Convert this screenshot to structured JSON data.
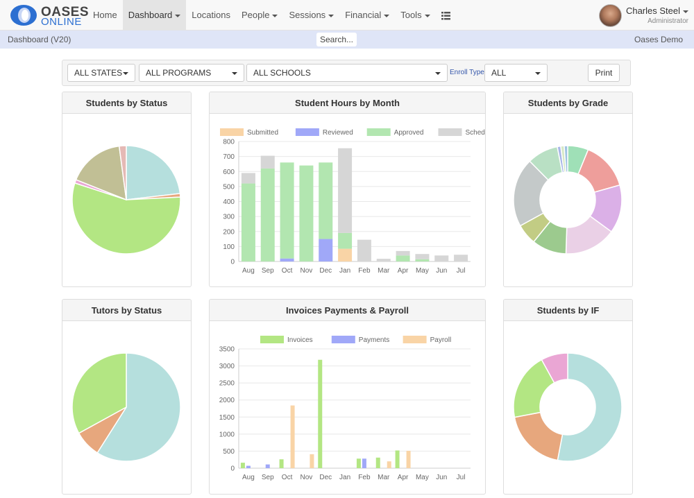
{
  "brand": {
    "line1": "OASES",
    "line2": "ONLINE",
    "accent": "#2c6fd1"
  },
  "nav": [
    {
      "label": "Home",
      "dropdown": false,
      "active": false
    },
    {
      "label": "Dashboard",
      "dropdown": true,
      "active": true
    },
    {
      "label": "Locations",
      "dropdown": false,
      "active": false
    },
    {
      "label": "People",
      "dropdown": true,
      "active": false
    },
    {
      "label": "Sessions",
      "dropdown": true,
      "active": false
    },
    {
      "label": "Financial",
      "dropdown": true,
      "active": false
    },
    {
      "label": "Tools",
      "dropdown": true,
      "active": false
    }
  ],
  "grid_icon": "list-grid-icon",
  "user": {
    "name": "Charles Steel",
    "role": "Administrator"
  },
  "subbar": {
    "left": "Dashboard (V20)",
    "search": "Search...",
    "right": "Oases Demo"
  },
  "filters": {
    "states": "ALL STATES",
    "programs": "ALL PROGRAMS",
    "schools": "ALL SCHOOLS",
    "enroll_label": "Enroll Type",
    "enroll_value": "ALL",
    "print": "Print"
  },
  "panels": {
    "students_status": "Students by Status",
    "hours": "Student Hours by Month",
    "grade": "Students by Grade",
    "tutors": "Tutors by Status",
    "invoices": "Invoices Payments & Payroll",
    "if": "Students by IF"
  },
  "chart_data": [
    {
      "type": "pie",
      "values": [
        22,
        1,
        53,
        1,
        16,
        2
      ],
      "colors": [
        "#b5dfdd",
        "#e7a77d",
        "#b3e683",
        "#eaa6d4",
        "#c1bf95",
        "#e5b9b5"
      ]
    },
    {
      "type": "bar",
      "stacked": true,
      "categories": [
        "Aug",
        "Sep",
        "Oct",
        "Nov",
        "Dec",
        "Jan",
        "Feb",
        "Mar",
        "Apr",
        "May",
        "Jun",
        "Jul"
      ],
      "series": [
        {
          "name": "Submitted",
          "color": "#f9d4a6",
          "values": [
            0,
            0,
            0,
            0,
            0,
            85,
            0,
            0,
            0,
            0,
            0,
            0
          ]
        },
        {
          "name": "Reviewed",
          "color": "#a0a8f8",
          "values": [
            0,
            0,
            20,
            0,
            150,
            0,
            0,
            0,
            0,
            0,
            0,
            0
          ]
        },
        {
          "name": "Approved",
          "color": "#b2e6b0",
          "values": [
            520,
            620,
            640,
            640,
            510,
            105,
            0,
            0,
            40,
            15,
            0,
            0
          ]
        },
        {
          "name": "Scheduled",
          "color": "#d6d6d6",
          "values": [
            70,
            85,
            0,
            0,
            0,
            565,
            145,
            18,
            30,
            35,
            40,
            45
          ]
        }
      ],
      "ylim": [
        0,
        800
      ],
      "yticks": [
        0,
        100,
        200,
        300,
        400,
        500,
        600,
        700,
        800
      ],
      "legend": "top"
    },
    {
      "type": "pie",
      "donut": true,
      "values": [
        6,
        14,
        14,
        15,
        10,
        6,
        20,
        9,
        1,
        1,
        1
      ],
      "colors": [
        "#9fe0b7",
        "#ee9e9b",
        "#dbb0e7",
        "#ead0e6",
        "#9cca8e",
        "#c2cc84",
        "#c4c9c9",
        "#b9e0c4",
        "#a8b6e8",
        "#d6e8c5",
        "#9fc3e2"
      ]
    },
    {
      "type": "pie",
      "values": [
        59,
        8,
        33
      ],
      "colors": [
        "#b5dfdd",
        "#e7a77d",
        "#b3e683"
      ]
    },
    {
      "type": "bar",
      "categories": [
        "Aug",
        "Sep",
        "Oct",
        "Nov",
        "Dec",
        "Jan",
        "Feb",
        "Mar",
        "Apr",
        "May",
        "Jun",
        "Jul"
      ],
      "series": [
        {
          "name": "Invoices",
          "color": "#b3e683",
          "values": [
            160,
            0,
            260,
            0,
            3180,
            0,
            280,
            310,
            520,
            0,
            0,
            0
          ]
        },
        {
          "name": "Payments",
          "color": "#a0a8f8",
          "values": [
            70,
            110,
            0,
            0,
            0,
            0,
            280,
            0,
            0,
            0,
            0,
            0
          ]
        },
        {
          "name": "Payroll",
          "color": "#f9d4a6",
          "values": [
            0,
            0,
            1840,
            410,
            0,
            0,
            0,
            200,
            510,
            0,
            0,
            0
          ]
        }
      ],
      "ylim": [
        0,
        3500
      ],
      "yticks": [
        0,
        500,
        1000,
        1500,
        2000,
        2500,
        3000,
        3500
      ],
      "legend": "top"
    },
    {
      "type": "pie",
      "donut": true,
      "values": [
        53,
        19,
        20,
        8
      ],
      "colors": [
        "#b5dfdd",
        "#e7a77d",
        "#b3e683",
        "#eaa6d4"
      ]
    }
  ]
}
